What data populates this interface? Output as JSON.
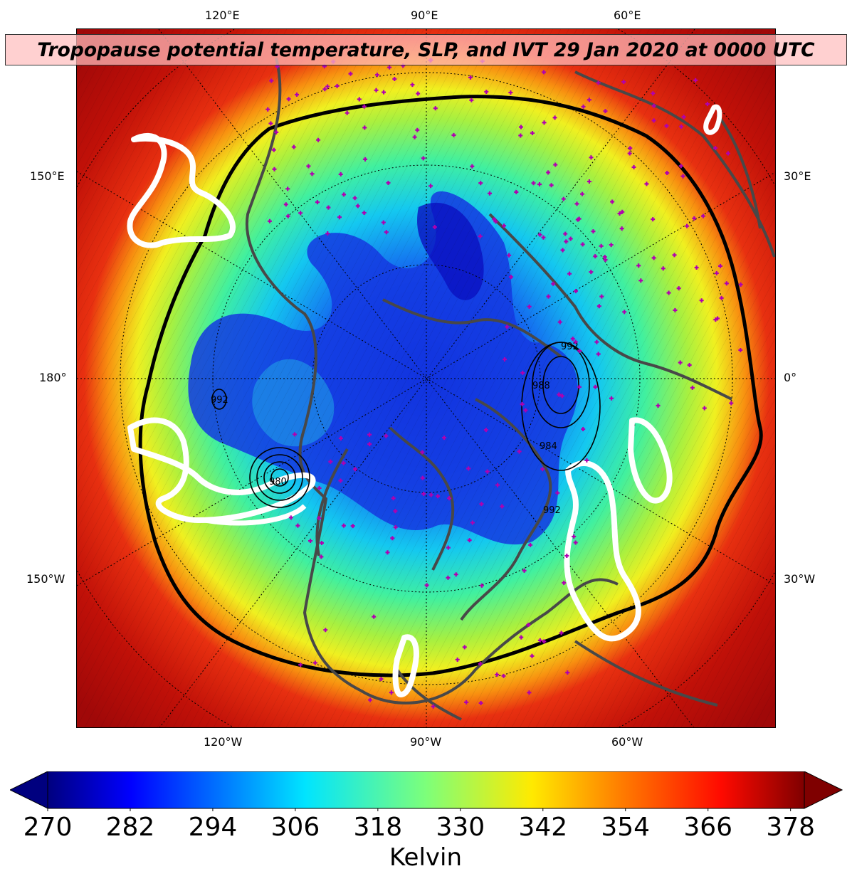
{
  "title": "Tropopause potential temperature, SLP, and IVT 29 Jan 2020 at 0000 UTC",
  "longitude_labels": {
    "top": [
      "120°E",
      "90°E",
      "60°E"
    ],
    "bottom": [
      "120°W",
      "90°W",
      "60°W"
    ],
    "left": [
      "150°E",
      "180°",
      "150°W"
    ],
    "right": [
      "30°E",
      "0°",
      "30°W"
    ]
  },
  "slp_contour_labels": [
    "992",
    "988",
    "992",
    "980",
    "984",
    "992"
  ],
  "colorbar": {
    "ticks": [
      "270",
      "282",
      "294",
      "306",
      "318",
      "330",
      "342",
      "354",
      "366",
      "378"
    ],
    "label": "Kelvin",
    "min": 270,
    "max": 380,
    "colormap": "jet",
    "extend": "both"
  },
  "colors": {
    "coastline": "#484848",
    "ivt_contour": "#ffffff",
    "station_marker": "#b000b0"
  }
}
